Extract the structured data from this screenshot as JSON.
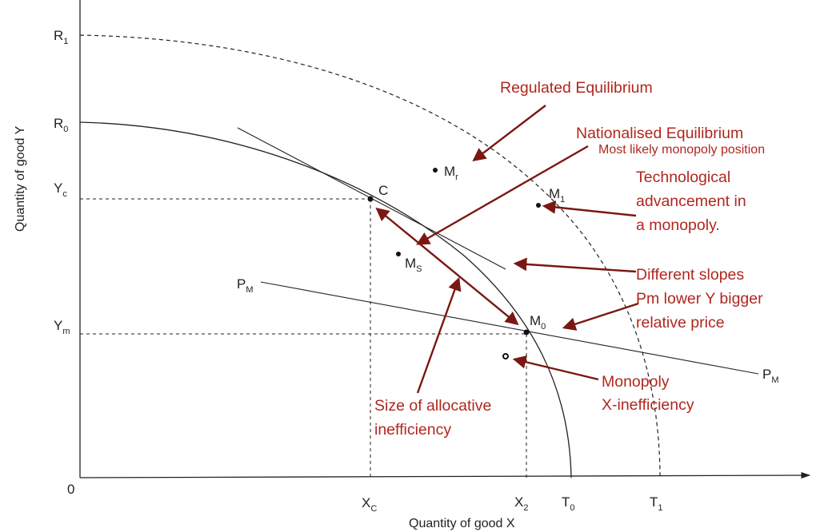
{
  "axes": {
    "y_title": "Quantity of good Y",
    "x_title": "Quantity of good X",
    "origin": "0"
  },
  "y_ticks": {
    "r1": {
      "main": "R",
      "sub": "1"
    },
    "r0": {
      "main": "R",
      "sub": "0"
    },
    "yc": {
      "main": "Y",
      "sub": "c"
    },
    "ym": {
      "main": "Y",
      "sub": "m"
    }
  },
  "x_ticks": {
    "xc": {
      "main": "X",
      "sub": "C"
    },
    "x2": {
      "main": "X",
      "sub": "2"
    },
    "t0": {
      "main": "T",
      "sub": "0"
    },
    "t1": {
      "main": "T",
      "sub": "1"
    }
  },
  "points": {
    "c": "C",
    "mr": {
      "main": "M",
      "sub": "r"
    },
    "ms": {
      "main": "M",
      "sub": "S"
    },
    "m1": {
      "main": "M",
      "sub": "1"
    },
    "m0": {
      "main": "M",
      "sub": "0"
    }
  },
  "price_line": {
    "left": {
      "main": "P",
      "sub": "M"
    },
    "right": {
      "main": "P",
      "sub": "M"
    }
  },
  "annotations": {
    "regulated": "Regulated Equilibrium",
    "nationalised": "Nationalised Equilibrium",
    "most_likely": "Most likely monopoly position",
    "tech_1": "Technological",
    "tech_2": "advancement in",
    "tech_3": "a monopoly.",
    "slopes_1": "Different slopes",
    "slopes_2": "Pm lower Y bigger",
    "slopes_3": "relative price",
    "monopoly_1": "Monopoly",
    "monopoly_2": "X-inefficiency",
    "alloc_1": "Size of allocative",
    "alloc_2": "inefficiency"
  },
  "colors": {
    "annotation": "#b0271f",
    "arrow": "#7a1712",
    "ink": "#222222"
  }
}
